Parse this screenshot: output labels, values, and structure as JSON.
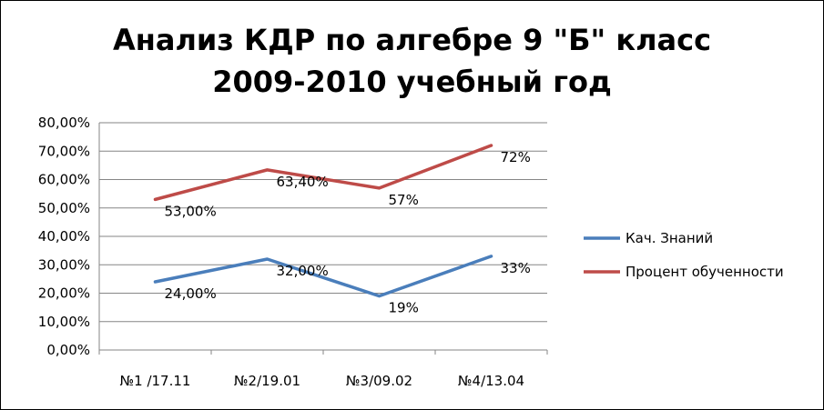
{
  "chart_data": {
    "type": "line",
    "title_line1": "Анализ КДР по алгебре 9 \"Б\" класс",
    "title_line2": "2009-2010 учебный год",
    "categories": [
      "№1 /17.11",
      "№2/19.01",
      "№3/09.02",
      "№4/13.04"
    ],
    "ylim": [
      0,
      80
    ],
    "ytick_labels": [
      "0,00%",
      "10,00%",
      "20,00%",
      "30,00%",
      "40,00%",
      "50,00%",
      "60,00%",
      "70,00%",
      "80,00%"
    ],
    "grid": true,
    "legend_position": "right",
    "series": [
      {
        "name": "Кач. Знаний",
        "color": "#4a7ebb",
        "values": [
          24,
          32,
          19,
          33
        ],
        "labels": [
          "24,00%",
          "32,00%",
          "19%",
          "33%"
        ]
      },
      {
        "name": "Процент обученности",
        "color": "#be4b48",
        "values": [
          53,
          63.4,
          57,
          72
        ],
        "labels": [
          "53,00%",
          "63,40%",
          "57%",
          "72%"
        ]
      }
    ]
  }
}
